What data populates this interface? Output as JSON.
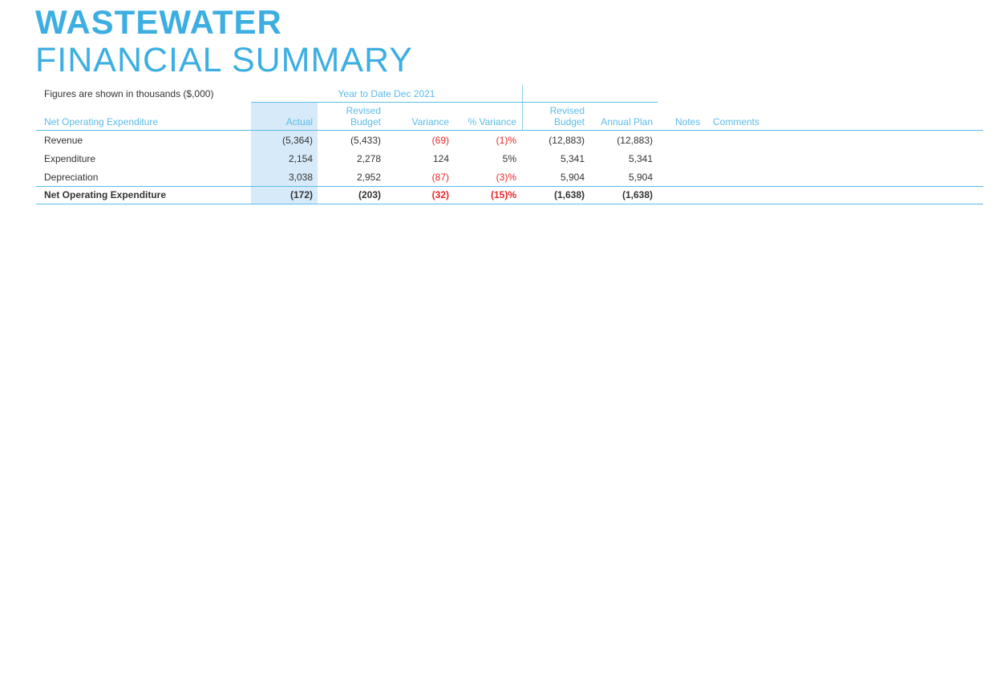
{
  "header": {
    "title": "WASTEWATER",
    "subtitle": "FINANCIAL SUMMARY"
  },
  "table": {
    "note": "Figures are shown in thousands ($,000)",
    "group": "Year to Date Dec 2021",
    "columns": [
      "Net Operating Expenditure",
      "Actual",
      "Revised Budget",
      "Variance",
      "% Variance",
      "Revised Budget",
      "Annual Plan",
      "Notes",
      "Comments"
    ],
    "rows": [
      [
        "Revenue",
        "(5,364)",
        "(5,433)",
        "(69)",
        "(1)%",
        "(12,883)",
        "(12,883)"
      ],
      [
        "Expenditure",
        "2,154",
        "2,278",
        "124",
        "5%",
        "5,341",
        "5,341"
      ],
      [
        "Depreciation",
        "3,038",
        "2,952",
        "(87)",
        "(3)%",
        "5,904",
        "5,904"
      ]
    ],
    "total": [
      "Net Operating Expenditure",
      "(172)",
      "(203)",
      "(32)",
      "(15)%",
      "(1,638)",
      "(1,638)"
    ]
  }
}
